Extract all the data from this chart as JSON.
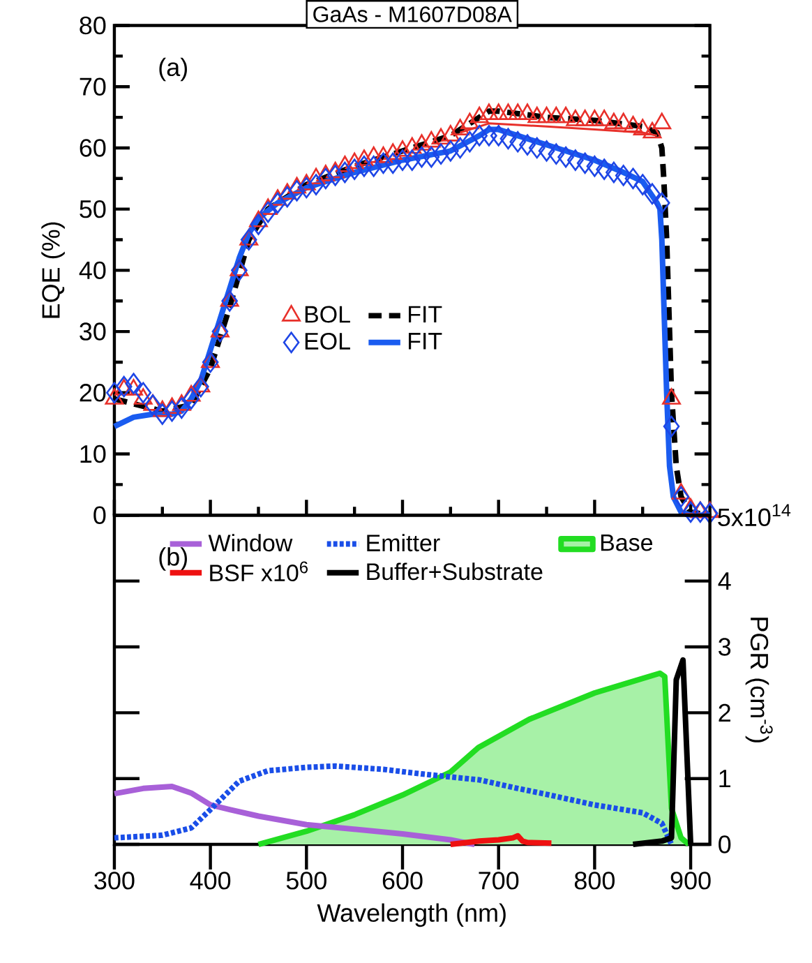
{
  "chart_data": [
    {
      "type": "line",
      "title": "GaAs - M1607D08A",
      "ylabel": "EQE (%)",
      "annotations": [
        "(a)"
      ],
      "xlim": [
        300,
        920
      ],
      "ylim": [
        0,
        80
      ],
      "xticks": [
        300,
        400,
        500,
        600,
        700,
        800,
        900
      ],
      "yticks": [
        0,
        10,
        20,
        30,
        40,
        50,
        60,
        70,
        80
      ],
      "tick_labels": "y",
      "legend": "center",
      "grid": false,
      "series": [
        {
          "name": "BOL",
          "type": "scatter",
          "marker": "triangle",
          "color": "#e8302a",
          "x": [
            300,
            310,
            320,
            330,
            340,
            350,
            360,
            370,
            380,
            390,
            400,
            410,
            420,
            430,
            440,
            450,
            460,
            470,
            480,
            490,
            500,
            510,
            520,
            530,
            540,
            550,
            560,
            570,
            580,
            590,
            600,
            610,
            620,
            630,
            640,
            650,
            660,
            670,
            680,
            690,
            700,
            710,
            720,
            730,
            740,
            750,
            760,
            770,
            780,
            790,
            800,
            810,
            820,
            830,
            840,
            850,
            860,
            870,
            880,
            890,
            900,
            910,
            920
          ],
          "values": [
            19,
            20.5,
            20.5,
            19,
            18,
            17,
            17.5,
            18,
            19.5,
            21,
            25,
            30,
            35,
            40,
            45,
            48,
            50,
            51.5,
            52.5,
            53.5,
            54,
            55,
            55.5,
            56,
            57,
            57.5,
            58,
            58.5,
            58.5,
            59,
            59.5,
            60,
            60.5,
            61,
            61.5,
            62,
            63,
            64,
            65,
            65.5,
            65.5,
            65.5,
            65.5,
            65.5,
            65,
            65,
            65,
            65,
            64.5,
            64.5,
            64.5,
            64.5,
            64,
            64,
            63.5,
            63,
            62.5,
            64,
            19,
            3.5,
            1,
            0.5,
            0.5
          ]
        },
        {
          "name": "FIT",
          "type": "line",
          "line_style": "dashed",
          "color": "#000000",
          "x": [
            300,
            350,
            380,
            400,
            420,
            440,
            460,
            500,
            550,
            600,
            650,
            680,
            690,
            700,
            750,
            800,
            850,
            865,
            870,
            872,
            875,
            878,
            880,
            885,
            890,
            900,
            920
          ],
          "values": [
            19,
            17,
            18,
            24,
            34,
            45,
            50,
            54,
            57,
            59.5,
            62,
            65,
            66,
            66,
            65,
            64.5,
            63.5,
            62.5,
            60,
            55,
            45,
            30,
            20,
            8,
            3,
            0.5,
            0
          ]
        },
        {
          "name": "EOL",
          "type": "scatter",
          "marker": "diamond",
          "color": "#1e46e6",
          "x": [
            300,
            310,
            320,
            330,
            340,
            350,
            360,
            370,
            380,
            390,
            400,
            410,
            420,
            430,
            440,
            450,
            460,
            470,
            480,
            490,
            500,
            510,
            520,
            530,
            540,
            550,
            560,
            570,
            580,
            590,
            600,
            610,
            620,
            630,
            640,
            650,
            660,
            670,
            680,
            690,
            700,
            710,
            720,
            730,
            740,
            750,
            760,
            770,
            780,
            790,
            800,
            810,
            820,
            830,
            840,
            850,
            860,
            870,
            880,
            890,
            900,
            910,
            920
          ],
          "values": [
            20,
            21,
            21.5,
            20,
            18,
            16.5,
            17,
            17.5,
            19,
            21,
            25,
            30,
            35,
            40,
            45,
            47.5,
            49.5,
            51,
            52,
            53,
            53.5,
            54,
            55,
            55.5,
            56,
            56.5,
            57,
            57,
            57.5,
            57.5,
            58,
            58,
            58.5,
            58.5,
            59,
            59.5,
            60,
            61,
            62,
            62,
            62,
            61.5,
            61,
            60.5,
            60,
            59.5,
            59,
            58.5,
            58,
            57.5,
            57,
            56.5,
            56,
            55.5,
            55,
            54,
            52.5,
            51,
            14.5,
            3,
            0.5,
            0.5,
            0.3
          ]
        },
        {
          "name": "FIT",
          "type": "line",
          "line_style": "solid",
          "color": "#1a5cf0",
          "x": [
            300,
            320,
            340,
            360,
            370,
            380,
            390,
            400,
            410,
            420,
            430,
            440,
            450,
            470,
            500,
            550,
            600,
            650,
            680,
            690,
            700,
            720,
            750,
            800,
            830,
            850,
            865,
            868,
            870,
            872,
            875,
            878,
            882,
            890,
            900,
            920
          ],
          "values": [
            14.5,
            16,
            16.5,
            16.5,
            17,
            19,
            22,
            27,
            32,
            37,
            42,
            46,
            48.5,
            51,
            53.5,
            56,
            58,
            59.5,
            62,
            63,
            63,
            62,
            60.5,
            58,
            56,
            54.5,
            51,
            50,
            45,
            35,
            20,
            8,
            3,
            0.5,
            0,
            0
          ]
        },
        {
          "type": "line",
          "line_style": "solid",
          "color": "#e8302a",
          "x": [
            660,
            690,
            750,
            800,
            850,
            865
          ],
          "values": [
            62.5,
            64,
            63.5,
            63,
            62.5,
            62
          ]
        }
      ]
    },
    {
      "type": "line",
      "xlabel": "Wavelength (nm)",
      "y2label": "PGR (cm$^{-3}$)",
      "annotations": [
        "(b)",
        "5x10$^{14}$"
      ],
      "xlim": [
        300,
        920
      ],
      "y2lim": [
        0,
        5
      ],
      "xticks": [
        300,
        400,
        500,
        600,
        700,
        800,
        900
      ],
      "y2ticks": [
        0,
        1,
        2,
        3,
        4,
        {
          "value": 5,
          "label": null
        }
      ],
      "legend": "top",
      "grid": false,
      "series": [
        {
          "name": "Window",
          "axis": "y2",
          "line_style": "solid",
          "color": "#a860d8",
          "x": [
            300,
            330,
            360,
            380,
            400,
            420,
            450,
            500,
            550,
            600,
            650,
            675
          ],
          "values": [
            0.77,
            0.85,
            0.88,
            0.78,
            0.6,
            0.53,
            0.43,
            0.3,
            0.23,
            0.16,
            0.07,
            0
          ]
        },
        {
          "name": "Emitter",
          "axis": "y2",
          "line_style": "dotted",
          "color": "#1a4ee8",
          "x": [
            300,
            350,
            380,
            400,
            430,
            460,
            500,
            530,
            580,
            620,
            680,
            720,
            750,
            800,
            850,
            870,
            880
          ],
          "values": [
            0.1,
            0.14,
            0.25,
            0.53,
            0.96,
            1.12,
            1.17,
            1.19,
            1.14,
            1.07,
            0.98,
            0.85,
            0.76,
            0.6,
            0.48,
            0.32,
            0
          ]
        },
        {
          "name": "Base",
          "type": "area",
          "axis": "y2",
          "color": "#22dd22",
          "x": [
            450,
            500,
            550,
            600,
            650,
            679,
            732,
            800,
            834,
            868,
            873,
            880,
            890,
            898
          ],
          "values": [
            0,
            0.2,
            0.45,
            0.75,
            1.1,
            1.47,
            1.9,
            2.3,
            2.45,
            2.6,
            2.55,
            0.55,
            0.1,
            0
          ]
        },
        {
          "name": "BSF x10$^{6}$",
          "axis": "y2",
          "line_style": "solid",
          "color": "#ee1111",
          "x": [
            650,
            680,
            700,
            715,
            720,
            725,
            730,
            755
          ],
          "values": [
            0,
            0.05,
            0.07,
            0.1,
            0.13,
            0.05,
            0.03,
            0.02
          ]
        },
        {
          "name": "Buffer+Substrate",
          "axis": "y2",
          "line_style": "solid",
          "color": "#000000",
          "x": [
            840,
            870,
            880,
            885,
            892,
            900
          ],
          "values": [
            0,
            0.05,
            0.1,
            2.5,
            2.8,
            0
          ]
        }
      ]
    }
  ]
}
